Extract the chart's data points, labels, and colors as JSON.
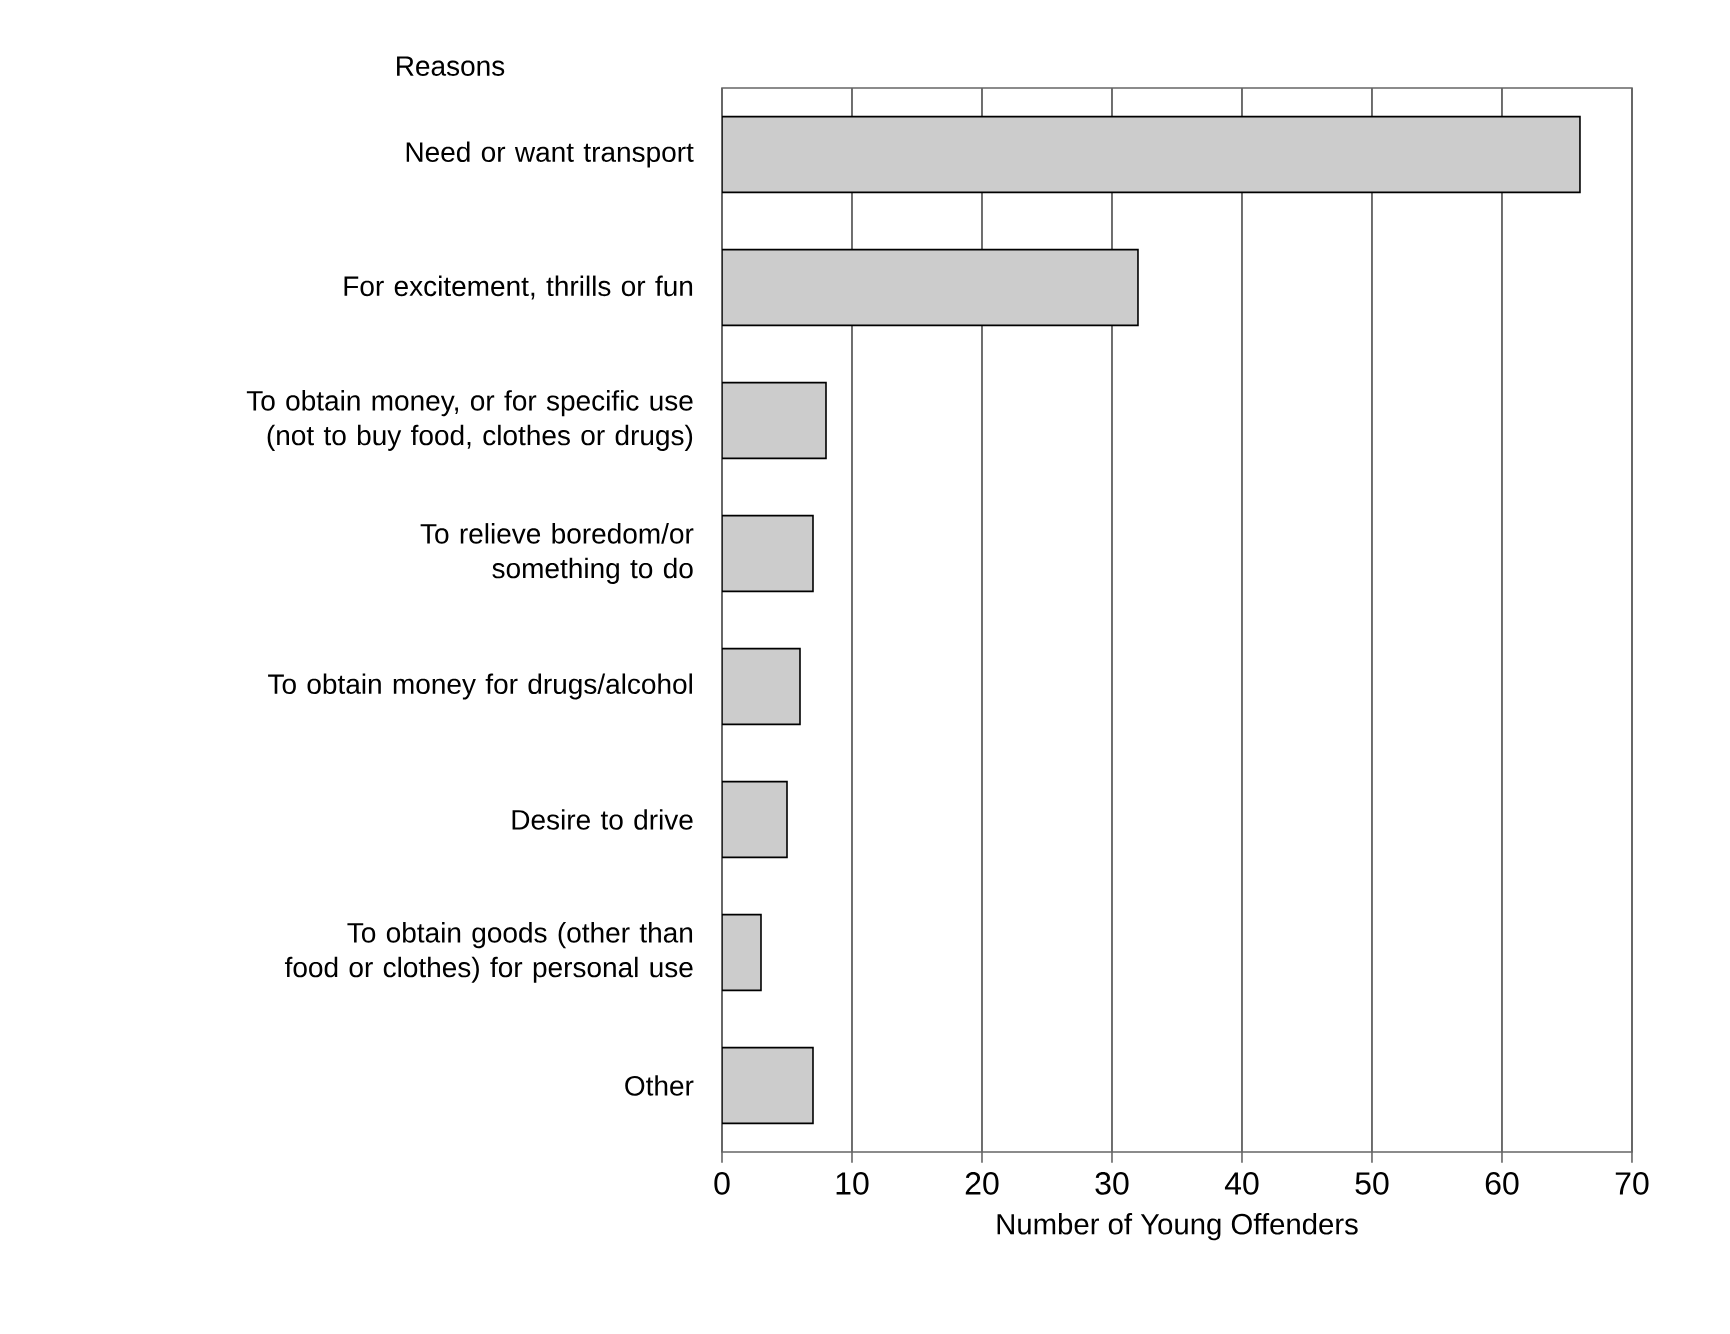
{
  "chart_data": {
    "type": "bar",
    "orientation": "horizontal",
    "ylabel": "Reasons",
    "xlabel": "Number of Young Offenders",
    "categories": [
      "Need or want transport",
      "For excitement, thrills or fun",
      "To obtain money, or for specific use (not to buy food, clothes or drugs)",
      "To relieve boredom/or something to do",
      "To obtain money for drugs/alcohol",
      "Desire to drive",
      "To obtain goods (other than food or clothes) for personal use",
      "Other"
    ],
    "values": [
      66,
      32,
      8,
      7,
      6,
      5,
      3,
      7
    ],
    "color": "#cccccc",
    "xlim": [
      0,
      70
    ],
    "xticks": [
      0,
      10,
      20,
      30,
      40,
      50,
      60,
      70
    ],
    "grid": "x"
  }
}
